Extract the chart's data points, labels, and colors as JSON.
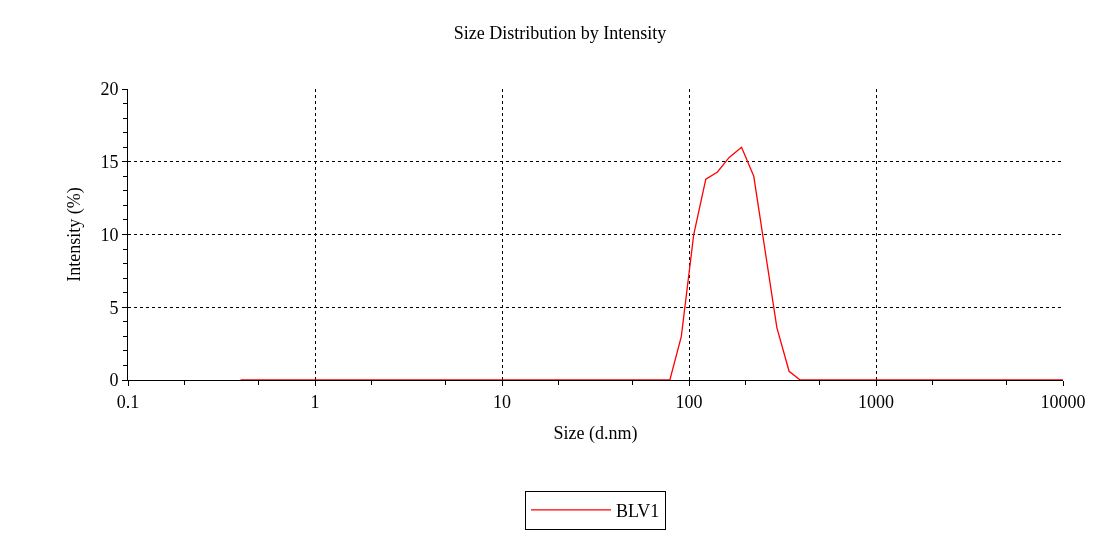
{
  "chart_data": {
    "type": "line",
    "title": "Size Distribution by Intensity",
    "xlabel": "Size (d.nm)",
    "ylabel": "Intensity (%)",
    "log": "x",
    "series": [
      {
        "name": "BLV1",
        "color": "#ff0000",
        "x": [
          0.4,
          79,
          91,
          106,
          123,
          142,
          164,
          191,
          222,
          295,
          343,
          393,
          10000
        ],
        "values": [
          0,
          0,
          3.0,
          10.0,
          13.8,
          14.3,
          15.3,
          16.0,
          14.0,
          3.6,
          0.6,
          0,
          0
        ]
      }
    ],
    "xlim": [
      0.1,
      10000
    ],
    "xticks": [
      0.1,
      1,
      10,
      100,
      1000,
      10000
    ],
    "ylim": [
      0,
      20
    ],
    "yticks": [
      0,
      5,
      10,
      15,
      20
    ],
    "grid": true,
    "legend": "bottom",
    "marker": "none",
    "line_style": "solid"
  }
}
